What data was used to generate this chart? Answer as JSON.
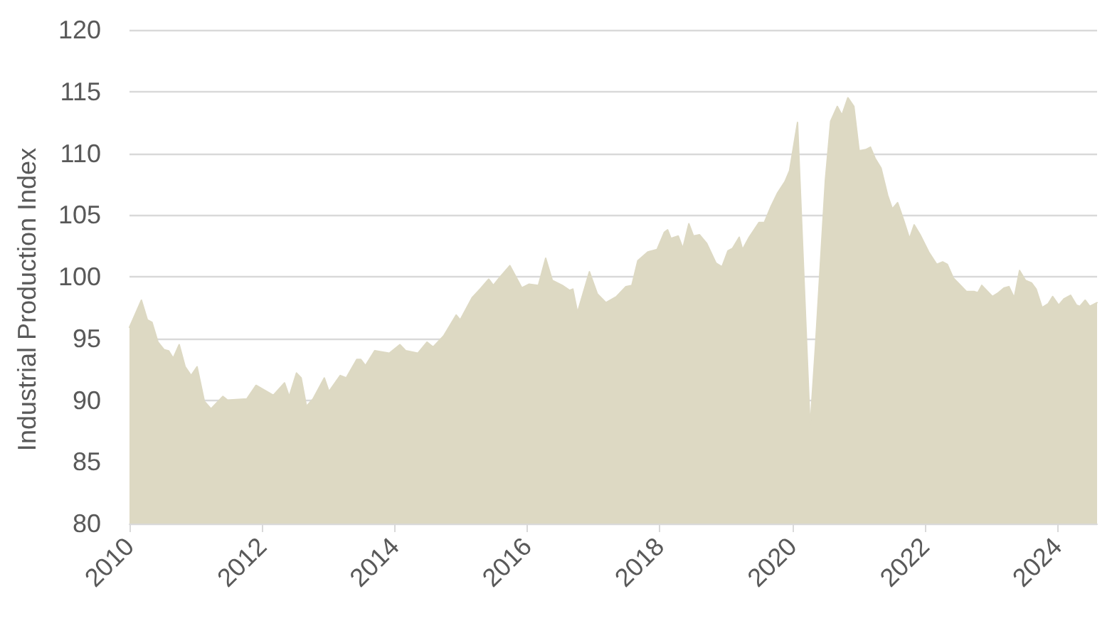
{
  "chart_data": {
    "type": "area",
    "ylabel": "Industrial Production Index",
    "x": [
      2010.0,
      2010.18,
      2010.27,
      2010.34,
      2010.43,
      2010.52,
      2010.59,
      2010.66,
      2010.75,
      2010.84,
      2010.93,
      2011.02,
      2011.13,
      2011.23,
      2011.41,
      2011.48,
      2011.77,
      2011.91,
      2012.17,
      2012.34,
      2012.41,
      2012.52,
      2012.59,
      2012.67,
      2012.77,
      2012.94,
      2013.01,
      2013.18,
      2013.27,
      2013.43,
      2013.49,
      2013.56,
      2013.7,
      2013.92,
      2014.08,
      2014.17,
      2014.35,
      2014.49,
      2014.58,
      2014.74,
      2014.93,
      2014.99,
      2015.17,
      2015.29,
      2015.42,
      2015.49,
      2015.58,
      2015.74,
      2015.92,
      2016.03,
      2016.17,
      2016.28,
      2016.38,
      2016.53,
      2016.64,
      2016.69,
      2016.76,
      2016.94,
      2017.06,
      2017.19,
      2017.35,
      2017.49,
      2017.58,
      2017.67,
      2017.82,
      2017.96,
      2018.07,
      2018.12,
      2018.17,
      2018.28,
      2018.35,
      2018.44,
      2018.51,
      2018.6,
      2018.71,
      2018.85,
      2018.94,
      2019.03,
      2019.1,
      2019.2,
      2019.25,
      2019.35,
      2019.5,
      2019.58,
      2019.68,
      2019.78,
      2019.89,
      2019.96,
      2020.08,
      2020.27,
      2020.35,
      2020.5,
      2020.58,
      2020.68,
      2020.75,
      2020.84,
      2020.93,
      2021.01,
      2021.11,
      2021.18,
      2021.25,
      2021.34,
      2021.44,
      2021.51,
      2021.59,
      2021.68,
      2021.77,
      2021.84,
      2021.93,
      2022.06,
      2022.18,
      2022.27,
      2022.34,
      2022.43,
      2022.54,
      2022.63,
      2022.75,
      2022.8,
      2022.86,
      2023.02,
      2023.11,
      2023.2,
      2023.27,
      2023.35,
      2023.43,
      2023.52,
      2023.61,
      2023.68,
      2023.77,
      2023.86,
      2023.93,
      2024.02,
      2024.1,
      2024.2,
      2024.29,
      2024.34,
      2024.42,
      2024.49,
      2024.6
    ],
    "values": [
      95.9,
      98.1,
      96.5,
      96.3,
      94.7,
      94.1,
      94.0,
      93.4,
      94.5,
      92.7,
      92.0,
      92.7,
      89.9,
      89.3,
      90.3,
      90.0,
      90.1,
      91.2,
      90.4,
      91.4,
      90.3,
      92.2,
      91.8,
      89.5,
      90.1,
      91.8,
      90.7,
      92.0,
      91.8,
      93.3,
      93.3,
      92.8,
      94.0,
      93.8,
      94.5,
      94.0,
      93.8,
      94.7,
      94.3,
      95.2,
      96.9,
      96.5,
      98.3,
      99.0,
      99.8,
      99.3,
      99.9,
      100.9,
      99.1,
      99.4,
      99.3,
      101.5,
      99.7,
      99.3,
      98.9,
      99.0,
      97.1,
      100.4,
      98.6,
      97.9,
      98.4,
      99.2,
      99.3,
      101.3,
      102.0,
      102.2,
      103.6,
      103.8,
      103.1,
      103.3,
      102.3,
      104.3,
      103.3,
      103.4,
      102.7,
      101.1,
      100.8,
      102.1,
      102.3,
      103.2,
      102.2,
      103.2,
      104.4,
      104.4,
      105.7,
      106.8,
      107.7,
      108.6,
      112.5,
      87.8,
      94.3,
      107.8,
      112.6,
      113.8,
      113.1,
      114.5,
      113.8,
      110.2,
      110.3,
      110.5,
      109.6,
      108.8,
      106.6,
      105.5,
      106.0,
      104.6,
      103.1,
      104.2,
      103.4,
      102.0,
      101.0,
      101.2,
      101.0,
      99.9,
      99.3,
      98.8,
      98.8,
      98.7,
      99.3,
      98.4,
      98.7,
      99.1,
      99.2,
      98.3,
      100.5,
      99.7,
      99.5,
      99.0,
      97.5,
      97.8,
      98.4,
      97.7,
      98.2,
      98.5,
      97.7,
      97.6,
      98.1,
      97.6,
      97.9
    ],
    "color": "#ddd9c3",
    "xlim": [
      2010,
      2024.6
    ],
    "xticks": [
      2010,
      2012,
      2014,
      2016,
      2018,
      2020,
      2022,
      2024
    ],
    "ylim": [
      80,
      120
    ],
    "yticks": [
      80,
      85,
      90,
      95,
      100,
      105,
      110,
      115,
      120
    ],
    "grid": "y",
    "marker": "none"
  }
}
